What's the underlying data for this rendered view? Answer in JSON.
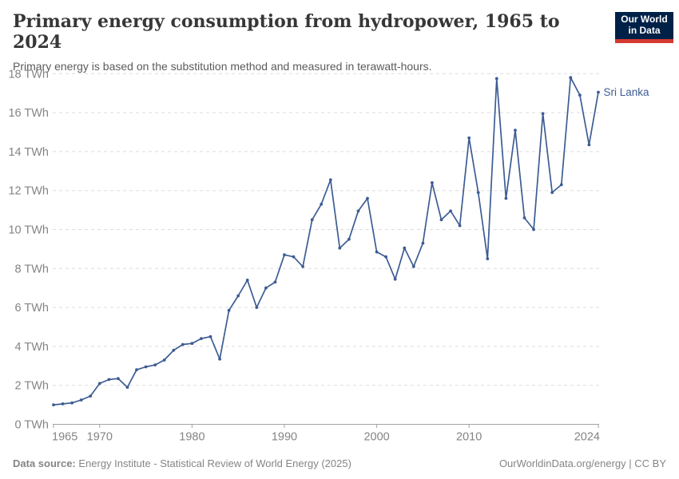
{
  "header": {
    "title": "Primary energy consumption from hydropower, 1965 to 2024",
    "subtitle": "Primary energy is based on the substitution method and measured in terawatt-hours.",
    "logo": {
      "line1": "Our World",
      "line2": "in Data",
      "bg_color": "#002147",
      "accent_color": "#d43a31"
    }
  },
  "chart_data": {
    "type": "line",
    "title": "Primary energy consumption from hydropower, 1965 to 2024",
    "xlabel": "",
    "ylabel": "",
    "xlim": [
      1965,
      2024
    ],
    "ylim": [
      0,
      18
    ],
    "grid": "horizontal-dashed",
    "legend_position": "end-of-line-label",
    "y_tick_suffix": " TWh",
    "y_ticks": [
      0,
      2,
      4,
      6,
      8,
      10,
      12,
      14,
      16,
      18
    ],
    "x_ticks": [
      1965,
      1970,
      1980,
      1990,
      2000,
      2010,
      2024
    ],
    "series": [
      {
        "name": "Sri Lanka",
        "color": "#3d5c94",
        "x": [
          1965,
          1966,
          1967,
          1968,
          1969,
          1970,
          1971,
          1972,
          1973,
          1974,
          1975,
          1976,
          1977,
          1978,
          1979,
          1980,
          1981,
          1982,
          1983,
          1984,
          1985,
          1986,
          1987,
          1988,
          1989,
          1990,
          1991,
          1992,
          1993,
          1994,
          1995,
          1996,
          1997,
          1998,
          1999,
          2000,
          2001,
          2002,
          2003,
          2004,
          2005,
          2006,
          2007,
          2008,
          2009,
          2010,
          2011,
          2012,
          2013,
          2014,
          2015,
          2016,
          2017,
          2018,
          2019,
          2020,
          2021,
          2022,
          2023,
          2024
        ],
        "values": [
          1.0,
          1.05,
          1.1,
          1.25,
          1.45,
          2.1,
          2.3,
          2.35,
          1.9,
          2.8,
          2.95,
          3.05,
          3.3,
          3.8,
          4.1,
          4.15,
          4.4,
          4.5,
          3.35,
          5.85,
          6.6,
          7.4,
          6.0,
          7.0,
          7.3,
          8.7,
          8.6,
          8.1,
          10.5,
          11.3,
          12.55,
          9.05,
          9.5,
          10.95,
          11.6,
          8.85,
          8.6,
          7.45,
          9.05,
          8.1,
          9.3,
          12.4,
          10.5,
          10.95,
          10.2,
          14.7,
          11.9,
          8.5,
          17.75,
          11.6,
          15.1,
          10.6,
          10.0,
          15.95,
          11.9,
          12.3,
          17.8,
          16.9,
          14.35,
          17.05
        ]
      }
    ],
    "colors": {
      "gridline": "#dcdcdc",
      "axis_line": "#a3a3a3",
      "tick_label": "#848484"
    }
  },
  "footer": {
    "datasource_label": "Data source:",
    "datasource": "Energy Institute - Statistical Review of World Energy (2025)",
    "credit": "OurWorldinData.org/energy | CC BY"
  }
}
